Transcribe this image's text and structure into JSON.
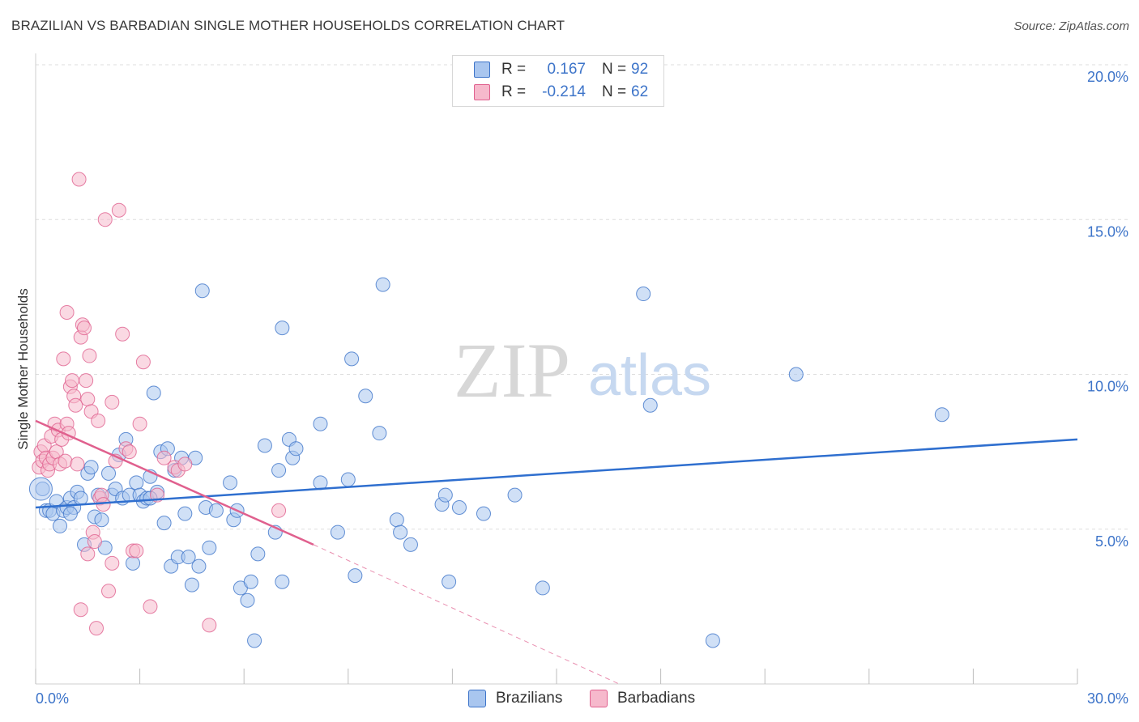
{
  "title": "BRAZILIAN VS BARBADIAN SINGLE MOTHER HOUSEHOLDS CORRELATION CHART",
  "source": "Source: ZipAtlas.com",
  "watermark": {
    "zip": "ZIP",
    "atlas": "atlas"
  },
  "colors": {
    "blue": "#3d74c9",
    "blue_fill": "#a9c6ef",
    "blue_line": "#2f6fcf",
    "pink": "#e0608e",
    "pink_fill": "#f6b9cc",
    "pink_line": "#e0608e",
    "grid": "#dedede"
  },
  "legend": {
    "row1": {
      "r_label": "R =",
      "r_value": "0.167",
      "n_label": "N =",
      "n_value": "92"
    },
    "row2": {
      "r_label": "R =",
      "r_value": "-0.214",
      "n_label": "N =",
      "n_value": "62"
    }
  },
  "bottom_legend": {
    "brazilians": "Brazilians",
    "barbadians": "Barbadians"
  },
  "chart_data": {
    "type": "scatter",
    "title": "BRAZILIAN VS BARBADIAN SINGLE MOTHER HOUSEHOLDS CORRELATION CHART",
    "xlabel": "",
    "ylabel": "Single Mother Households",
    "xlim": [
      0,
      30
    ],
    "ylim": [
      0,
      20
    ],
    "x_tick_labels": [
      "0.0%",
      "30.0%"
    ],
    "y_ticks": [
      5,
      10,
      15,
      20
    ],
    "y_tick_labels": [
      "5.0%",
      "10.0%",
      "15.0%",
      "20.0%"
    ],
    "series": [
      {
        "name": "Brazilians",
        "trend": {
          "x": [
            0,
            30
          ],
          "y": [
            5.7,
            7.9
          ]
        },
        "points": [
          [
            0.2,
            6.3
          ],
          [
            0.3,
            5.6
          ],
          [
            0.4,
            5.6
          ],
          [
            0.5,
            5.5
          ],
          [
            0.6,
            5.9
          ],
          [
            0.7,
            5.1
          ],
          [
            0.8,
            5.6
          ],
          [
            0.9,
            5.7
          ],
          [
            1.0,
            6.0
          ],
          [
            1.1,
            5.7
          ],
          [
            1.2,
            6.2
          ],
          [
            1.3,
            6.0
          ],
          [
            1.4,
            4.5
          ],
          [
            1.5,
            6.8
          ],
          [
            1.6,
            7.0
          ],
          [
            1.7,
            5.4
          ],
          [
            1.8,
            6.1
          ],
          [
            1.9,
            5.3
          ],
          [
            2.0,
            4.4
          ],
          [
            2.1,
            6.8
          ],
          [
            2.2,
            6.1
          ],
          [
            2.3,
            6.3
          ],
          [
            2.4,
            7.4
          ],
          [
            2.5,
            6.0
          ],
          [
            2.6,
            7.9
          ],
          [
            2.7,
            6.1
          ],
          [
            2.8,
            3.9
          ],
          [
            2.9,
            6.5
          ],
          [
            3.0,
            6.1
          ],
          [
            3.1,
            5.9
          ],
          [
            3.2,
            6.0
          ],
          [
            3.3,
            6.7
          ],
          [
            3.4,
            9.4
          ],
          [
            3.5,
            6.2
          ],
          [
            3.6,
            7.5
          ],
          [
            3.7,
            5.2
          ],
          [
            3.8,
            7.6
          ],
          [
            3.9,
            3.8
          ],
          [
            4.0,
            6.9
          ],
          [
            4.1,
            4.1
          ],
          [
            4.2,
            7.3
          ],
          [
            4.3,
            5.5
          ],
          [
            4.4,
            4.1
          ],
          [
            4.5,
            3.2
          ],
          [
            4.6,
            7.3
          ],
          [
            4.7,
            3.8
          ],
          [
            4.8,
            12.7
          ],
          [
            4.9,
            5.7
          ],
          [
            5.0,
            4.4
          ],
          [
            5.2,
            5.6
          ],
          [
            5.6,
            6.5
          ],
          [
            5.7,
            5.3
          ],
          [
            5.8,
            5.6
          ],
          [
            5.9,
            3.1
          ],
          [
            6.1,
            2.7
          ],
          [
            6.2,
            3.3
          ],
          [
            6.3,
            1.4
          ],
          [
            6.4,
            4.2
          ],
          [
            6.6,
            7.7
          ],
          [
            6.9,
            4.9
          ],
          [
            7.0,
            6.9
          ],
          [
            7.1,
            11.5
          ],
          [
            7.1,
            3.3
          ],
          [
            7.3,
            7.9
          ],
          [
            7.4,
            7.3
          ],
          [
            7.5,
            7.6
          ],
          [
            8.2,
            8.4
          ],
          [
            8.2,
            6.5
          ],
          [
            8.7,
            4.9
          ],
          [
            9.0,
            6.6
          ],
          [
            9.1,
            10.5
          ],
          [
            9.2,
            3.5
          ],
          [
            9.5,
            9.3
          ],
          [
            9.9,
            8.1
          ],
          [
            10.0,
            12.9
          ],
          [
            10.4,
            5.3
          ],
          [
            10.5,
            4.9
          ],
          [
            10.8,
            4.5
          ],
          [
            11.7,
            5.8
          ],
          [
            11.8,
            6.1
          ],
          [
            11.9,
            3.3
          ],
          [
            12.2,
            5.7
          ],
          [
            12.9,
            5.5
          ],
          [
            13.8,
            6.1
          ],
          [
            14.6,
            3.1
          ],
          [
            17.5,
            12.6
          ],
          [
            17.7,
            9.0
          ],
          [
            19.5,
            1.4
          ],
          [
            21.9,
            10.0
          ],
          [
            26.1,
            8.7
          ],
          [
            3.3,
            6.0
          ],
          [
            1.0,
            5.5
          ]
        ]
      },
      {
        "name": "Barbadians",
        "trend": {
          "x": [
            0,
            8
          ],
          "y": [
            8.5,
            4.5
          ]
        },
        "trend_dashed": {
          "x": [
            8,
            16.8
          ],
          "y": [
            4.5,
            0
          ]
        },
        "points": [
          [
            0.1,
            7.0
          ],
          [
            0.15,
            7.5
          ],
          [
            0.2,
            7.2
          ],
          [
            0.25,
            7.7
          ],
          [
            0.3,
            7.3
          ],
          [
            0.35,
            6.9
          ],
          [
            0.4,
            7.1
          ],
          [
            0.45,
            8.0
          ],
          [
            0.5,
            7.3
          ],
          [
            0.55,
            8.4
          ],
          [
            0.6,
            7.5
          ],
          [
            0.65,
            8.2
          ],
          [
            0.7,
            7.1
          ],
          [
            0.75,
            7.9
          ],
          [
            0.8,
            10.5
          ],
          [
            0.85,
            7.2
          ],
          [
            0.9,
            12.0
          ],
          [
            0.9,
            8.4
          ],
          [
            0.95,
            8.1
          ],
          [
            1.0,
            9.6
          ],
          [
            1.05,
            9.8
          ],
          [
            1.1,
            9.3
          ],
          [
            1.15,
            9.0
          ],
          [
            1.2,
            7.1
          ],
          [
            1.25,
            16.3
          ],
          [
            1.3,
            11.2
          ],
          [
            1.35,
            11.6
          ],
          [
            1.4,
            11.5
          ],
          [
            1.45,
            9.8
          ],
          [
            1.5,
            9.2
          ],
          [
            1.55,
            10.6
          ],
          [
            1.6,
            8.8
          ],
          [
            1.65,
            4.9
          ],
          [
            1.7,
            4.6
          ],
          [
            1.75,
            1.8
          ],
          [
            1.8,
            8.5
          ],
          [
            1.85,
            6.0
          ],
          [
            1.9,
            6.1
          ],
          [
            1.95,
            5.8
          ],
          [
            2.0,
            15.0
          ],
          [
            2.1,
            3.0
          ],
          [
            2.2,
            9.1
          ],
          [
            2.3,
            7.2
          ],
          [
            2.4,
            15.3
          ],
          [
            2.5,
            11.3
          ],
          [
            2.6,
            7.6
          ],
          [
            2.7,
            7.5
          ],
          [
            2.8,
            4.3
          ],
          [
            2.9,
            4.3
          ],
          [
            3.0,
            8.4
          ],
          [
            3.1,
            10.4
          ],
          [
            3.3,
            2.5
          ],
          [
            3.5,
            6.1
          ],
          [
            3.7,
            7.3
          ],
          [
            4.0,
            7.0
          ],
          [
            4.1,
            6.9
          ],
          [
            4.3,
            7.1
          ],
          [
            5.0,
            1.9
          ],
          [
            7.0,
            5.6
          ],
          [
            1.5,
            4.2
          ],
          [
            1.3,
            2.4
          ],
          [
            2.2,
            3.9
          ]
        ]
      }
    ]
  }
}
